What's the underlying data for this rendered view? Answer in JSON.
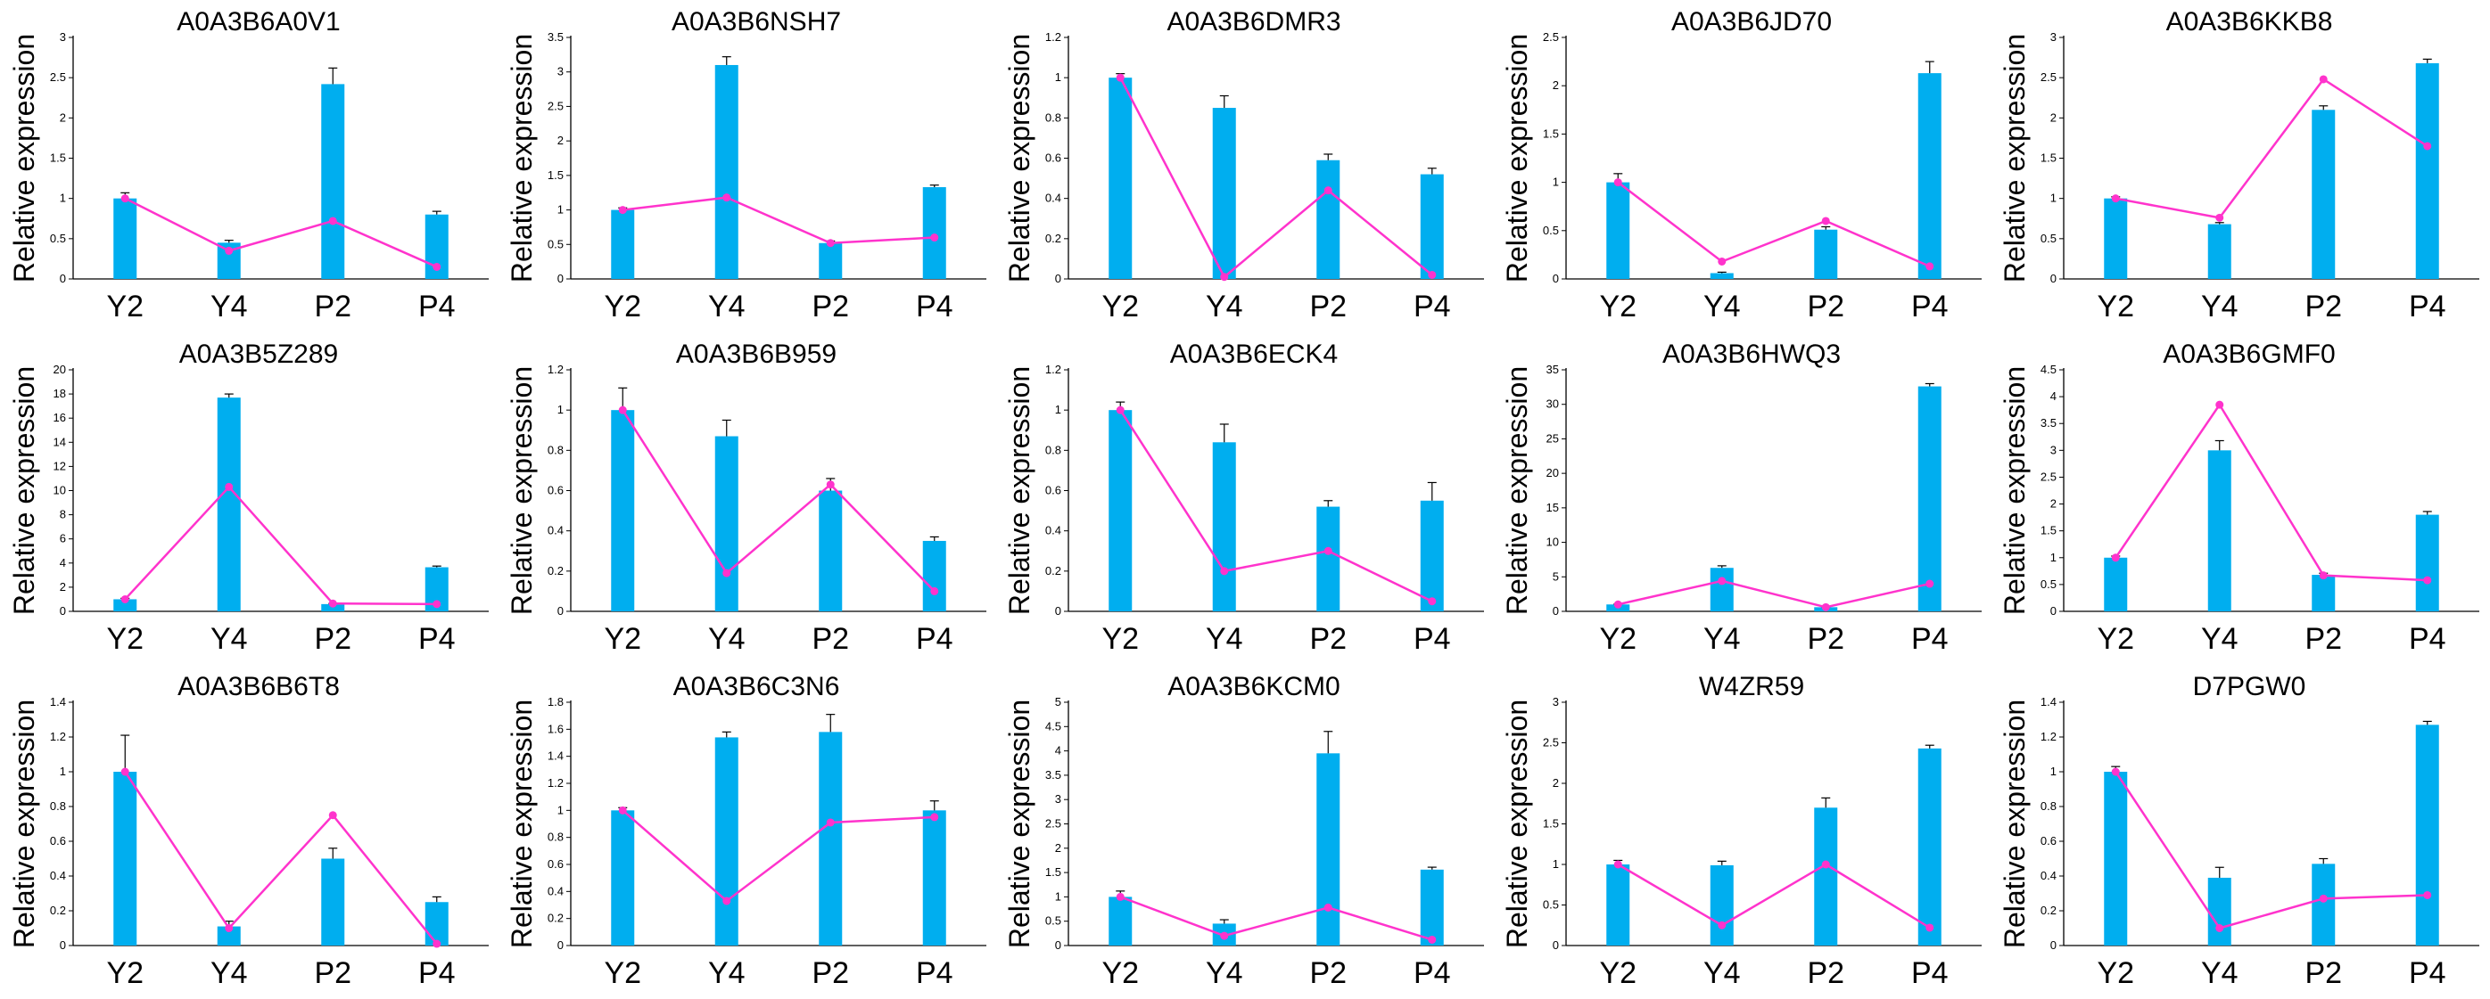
{
  "figure": {
    "bar_color": "#00AEEF",
    "line_color": "#FF33CC",
    "axis_color": "#000000"
  },
  "chart_data": [
    {
      "type": "bar+line",
      "title": "A0A3B6A0V1",
      "ylabel": "Relative expression",
      "categories": [
        "Y2",
        "Y4",
        "P2",
        "P4"
      ],
      "ylim": [
        0,
        3
      ],
      "yticks": [
        "0",
        "0.5",
        "1",
        "1.5",
        "2",
        "2.5",
        "3"
      ],
      "bars": [
        1.0,
        0.45,
        2.42,
        0.8
      ],
      "errors": [
        0.07,
        0.03,
        0.2,
        0.04
      ],
      "line": [
        1.0,
        0.35,
        0.72,
        0.15
      ]
    },
    {
      "type": "bar+line",
      "title": "A0A3B6NSH7",
      "ylabel": "Relative expression",
      "categories": [
        "Y2",
        "Y4",
        "P2",
        "P4"
      ],
      "ylim": [
        0,
        3.5
      ],
      "yticks": [
        "0",
        "0.5",
        "1",
        "1.5",
        "2",
        "2.5",
        "3",
        "3.5"
      ],
      "bars": [
        1.0,
        3.1,
        0.52,
        1.33
      ],
      "errors": [
        0.03,
        0.12,
        0.03,
        0.03
      ],
      "line": [
        1.0,
        1.18,
        0.52,
        0.6
      ]
    },
    {
      "type": "bar+line",
      "title": "A0A3B6DMR3",
      "ylabel": "Relative expression",
      "categories": [
        "Y2",
        "Y4",
        "P2",
        "P4"
      ],
      "ylim": [
        0,
        1.2
      ],
      "yticks": [
        "0",
        "0.2",
        "0.4",
        "0.6",
        "0.8",
        "1",
        "1.2"
      ],
      "bars": [
        1.0,
        0.85,
        0.59,
        0.52
      ],
      "errors": [
        0.02,
        0.06,
        0.03,
        0.03
      ],
      "line": [
        1.0,
        0.01,
        0.44,
        0.02
      ]
    },
    {
      "type": "bar+line",
      "title": "A0A3B6JD70",
      "ylabel": "Relative expression",
      "categories": [
        "Y2",
        "Y4",
        "P2",
        "P4"
      ],
      "ylim": [
        0,
        2.5
      ],
      "yticks": [
        "0",
        "0.5",
        "1",
        "1.5",
        "2",
        "2.5"
      ],
      "bars": [
        1.0,
        0.06,
        0.51,
        2.13
      ],
      "errors": [
        0.09,
        0.01,
        0.03,
        0.12
      ],
      "line": [
        1.0,
        0.18,
        0.6,
        0.13
      ]
    },
    {
      "type": "bar+line",
      "title": "A0A3B6KKB8",
      "ylabel": "Relative expression",
      "categories": [
        "Y2",
        "Y4",
        "P2",
        "P4"
      ],
      "ylim": [
        0,
        3
      ],
      "yticks": [
        "0",
        "0.5",
        "1",
        "1.5",
        "2",
        "2.5",
        "3"
      ],
      "bars": [
        1.0,
        0.68,
        2.1,
        2.68
      ],
      "errors": [
        0.02,
        0.02,
        0.05,
        0.05
      ],
      "line": [
        1.0,
        0.76,
        2.48,
        1.65
      ]
    },
    {
      "type": "bar+line",
      "title": "A0A3B5Z289",
      "ylabel": "Relative expression",
      "categories": [
        "Y2",
        "Y4",
        "P2",
        "P4"
      ],
      "ylim": [
        0,
        20
      ],
      "yticks": [
        "0",
        "2",
        "4",
        "6",
        "8",
        "10",
        "12",
        "14",
        "16",
        "18",
        "20"
      ],
      "bars": [
        1.0,
        17.7,
        0.6,
        3.65
      ],
      "errors": [
        0.08,
        0.3,
        0.05,
        0.1
      ],
      "line": [
        1.0,
        10.3,
        0.65,
        0.6
      ]
    },
    {
      "type": "bar+line",
      "title": "A0A3B6B959",
      "ylabel": "Relative expression",
      "categories": [
        "Y2",
        "Y4",
        "P2",
        "P4"
      ],
      "ylim": [
        0,
        1.2
      ],
      "yticks": [
        "0",
        "0.2",
        "0.4",
        "0.6",
        "0.8",
        "1",
        "1.2"
      ],
      "bars": [
        1.0,
        0.87,
        0.6,
        0.35
      ],
      "errors": [
        0.11,
        0.08,
        0.06,
        0.02
      ],
      "line": [
        1.0,
        0.19,
        0.63,
        0.1
      ]
    },
    {
      "type": "bar+line",
      "title": "A0A3B6ECK4",
      "ylabel": "Relative expression",
      "categories": [
        "Y2",
        "Y4",
        "P2",
        "P4"
      ],
      "ylim": [
        0,
        1.2
      ],
      "yticks": [
        "0",
        "0.2",
        "0.4",
        "0.6",
        "0.8",
        "1",
        "1.2"
      ],
      "bars": [
        1.0,
        0.84,
        0.52,
        0.55
      ],
      "errors": [
        0.04,
        0.09,
        0.03,
        0.09
      ],
      "line": [
        1.0,
        0.2,
        0.3,
        0.05
      ]
    },
    {
      "type": "bar+line",
      "title": "A0A3B6HWQ3",
      "ylabel": "Relative expression",
      "categories": [
        "Y2",
        "Y4",
        "P2",
        "P4"
      ],
      "ylim": [
        0,
        35
      ],
      "yticks": [
        "0",
        "5",
        "10",
        "15",
        "20",
        "25",
        "30",
        "35"
      ],
      "bars": [
        1.0,
        6.3,
        0.6,
        32.6
      ],
      "errors": [
        0.05,
        0.3,
        0.05,
        0.4
      ],
      "line": [
        1.0,
        4.4,
        0.6,
        4.0
      ]
    },
    {
      "type": "bar+line",
      "title": "A0A3B6GMF0",
      "ylabel": "Relative expression",
      "categories": [
        "Y2",
        "Y4",
        "P2",
        "P4"
      ],
      "ylim": [
        0,
        4.5
      ],
      "yticks": [
        "0",
        "0.5",
        "1",
        "1.5",
        "2",
        "2.5",
        "3",
        "3.5",
        "4",
        "4.5"
      ],
      "bars": [
        1.0,
        3.0,
        0.68,
        1.8
      ],
      "errors": [
        0.03,
        0.18,
        0.03,
        0.06
      ],
      "line": [
        1.0,
        3.85,
        0.67,
        0.58
      ]
    },
    {
      "type": "bar+line",
      "title": "A0A3B6B6T8",
      "ylabel": "Relative expression",
      "categories": [
        "Y2",
        "Y4",
        "P2",
        "P4"
      ],
      "ylim": [
        0,
        1.4
      ],
      "yticks": [
        "0",
        "0.2",
        "0.4",
        "0.6",
        "0.8",
        "1",
        "1.2",
        "1.4"
      ],
      "bars": [
        1.0,
        0.11,
        0.5,
        0.25
      ],
      "errors": [
        0.21,
        0.03,
        0.06,
        0.03
      ],
      "line": [
        1.0,
        0.1,
        0.75,
        0.01
      ]
    },
    {
      "type": "bar+line",
      "title": "A0A3B6C3N6",
      "ylabel": "Relative expression",
      "categories": [
        "Y2",
        "Y4",
        "P2",
        "P4"
      ],
      "ylim": [
        0,
        1.8
      ],
      "yticks": [
        "0",
        "0.2",
        "0.4",
        "0.6",
        "0.8",
        "1",
        "1.2",
        "1.4",
        "1.6",
        "1.8"
      ],
      "bars": [
        1.0,
        1.54,
        1.58,
        1.0
      ],
      "errors": [
        0.02,
        0.04,
        0.13,
        0.07
      ],
      "line": [
        1.0,
        0.33,
        0.91,
        0.95
      ]
    },
    {
      "type": "bar+line",
      "title": "A0A3B6KCM0",
      "ylabel": "Relative expression",
      "categories": [
        "Y2",
        "Y4",
        "P2",
        "P4"
      ],
      "ylim": [
        0,
        5
      ],
      "yticks": [
        "0",
        "0.5",
        "1",
        "1.5",
        "2",
        "2.5",
        "3",
        "3.5",
        "4",
        "4.5",
        "5"
      ],
      "bars": [
        1.0,
        0.45,
        3.95,
        1.56
      ],
      "errors": [
        0.12,
        0.08,
        0.45,
        0.05
      ],
      "line": [
        1.0,
        0.2,
        0.78,
        0.12
      ]
    },
    {
      "type": "bar+line",
      "title": "W4ZR59",
      "ylabel": "Relative expression",
      "categories": [
        "Y2",
        "Y4",
        "P2",
        "P4"
      ],
      "ylim": [
        0,
        3
      ],
      "yticks": [
        "0",
        "0.5",
        "1",
        "1.5",
        "2",
        "2.5",
        "3"
      ],
      "bars": [
        1.0,
        0.99,
        1.7,
        2.43
      ],
      "errors": [
        0.05,
        0.05,
        0.12,
        0.04
      ],
      "line": [
        1.0,
        0.25,
        1.0,
        0.22
      ]
    },
    {
      "type": "bar+line",
      "title": "D7PGW0",
      "ylabel": "Relative expression",
      "categories": [
        "Y2",
        "Y4",
        "P2",
        "P4"
      ],
      "ylim": [
        0,
        1.4
      ],
      "yticks": [
        "0",
        "0.2",
        "0.4",
        "0.6",
        "0.8",
        "1",
        "1.2",
        "1.4"
      ],
      "bars": [
        1.0,
        0.39,
        0.47,
        1.27
      ],
      "errors": [
        0.03,
        0.06,
        0.03,
        0.02
      ],
      "line": [
        1.0,
        0.1,
        0.27,
        0.29
      ]
    }
  ]
}
